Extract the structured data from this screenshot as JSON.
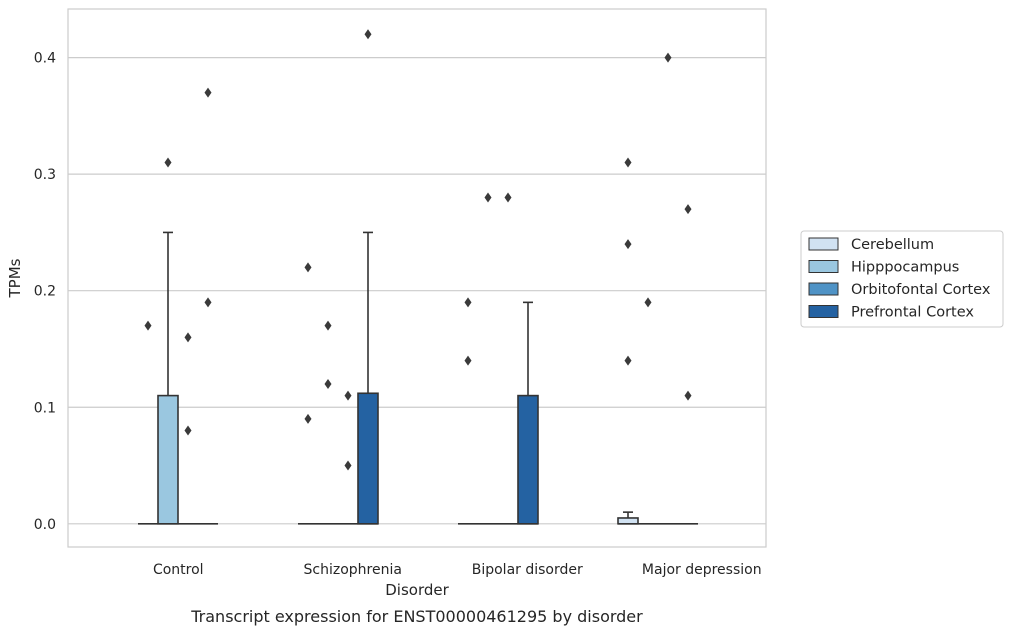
{
  "chart_data": {
    "type": "box",
    "title": "",
    "caption": "Transcript expression for ENST00000461295 by disorder",
    "xlabel": "Disorder",
    "ylabel": "TPMs",
    "ylim": [
      -0.02,
      0.44
    ],
    "yticks": [
      0.0,
      0.1,
      0.2,
      0.3,
      0.4
    ],
    "ytick_labels": [
      "0.0",
      "0.1",
      "0.2",
      "0.3",
      "0.4"
    ],
    "grid": "horizontal",
    "legend_position": "right",
    "categories": [
      "Control",
      "Schizophrenia",
      "Bipolar disorder",
      "Major depression"
    ],
    "series": [
      {
        "name": "Cerebellum",
        "color": "#d1e2f2",
        "boxes": [
          {
            "q1": 0,
            "median": 0,
            "q3": 0,
            "whisker_low": 0,
            "whisker_high": 0,
            "outliers": [
              0.17
            ]
          },
          {
            "q1": 0,
            "median": 0,
            "q3": 0,
            "whisker_low": 0,
            "whisker_high": 0,
            "outliers": [
              0.22,
              0.09
            ]
          },
          {
            "q1": 0,
            "median": 0,
            "q3": 0,
            "whisker_low": 0,
            "whisker_high": 0,
            "outliers": [
              0.19,
              0.14
            ]
          },
          {
            "q1": 0,
            "median": 0,
            "q3": 0.005,
            "whisker_low": 0,
            "whisker_high": 0.01,
            "outliers": [
              0.31,
              0.24,
              0.14
            ]
          }
        ]
      },
      {
        "name": "Hipppocampus",
        "color": "#9ac7e0",
        "boxes": [
          {
            "q1": 0,
            "median": 0,
            "q3": 0.11,
            "whisker_low": 0,
            "whisker_high": 0.25,
            "outliers": [
              0.31
            ]
          },
          {
            "q1": 0,
            "median": 0,
            "q3": 0,
            "whisker_low": 0,
            "whisker_high": 0,
            "outliers": [
              0.17,
              0.12
            ]
          },
          {
            "q1": 0,
            "median": 0,
            "q3": 0,
            "whisker_low": 0,
            "whisker_high": 0,
            "outliers": [
              0.28
            ]
          },
          {
            "q1": 0,
            "median": 0,
            "q3": 0,
            "whisker_low": 0,
            "whisker_high": 0,
            "outliers": [
              0.19
            ]
          }
        ]
      },
      {
        "name": "Orbitofontal Cortex",
        "color": "#4f93c6",
        "boxes": [
          {
            "q1": 0,
            "median": 0,
            "q3": 0,
            "whisker_low": 0,
            "whisker_high": 0,
            "outliers": [
              0.16,
              0.08
            ]
          },
          {
            "q1": 0,
            "median": 0,
            "q3": 0,
            "whisker_low": 0,
            "whisker_high": 0,
            "outliers": [
              0.11,
              0.05
            ]
          },
          {
            "q1": 0,
            "median": 0,
            "q3": 0,
            "whisker_low": 0,
            "whisker_high": 0,
            "outliers": [
              0.28
            ]
          },
          {
            "q1": 0,
            "median": 0,
            "q3": 0,
            "whisker_low": 0,
            "whisker_high": 0,
            "outliers": [
              0.4
            ]
          }
        ]
      },
      {
        "name": "Prefrontal Cortex",
        "color": "#2462a2",
        "boxes": [
          {
            "q1": 0,
            "median": 0,
            "q3": 0,
            "whisker_low": 0,
            "whisker_high": 0,
            "outliers": [
              0.37,
              0.19
            ]
          },
          {
            "q1": 0,
            "median": 0,
            "q3": 0.112,
            "whisker_low": 0,
            "whisker_high": 0.25,
            "outliers": [
              0.42
            ]
          },
          {
            "q1": 0,
            "median": 0,
            "q3": 0.11,
            "whisker_low": 0,
            "whisker_high": 0.19,
            "outliers": []
          },
          {
            "q1": 0,
            "median": 0,
            "q3": 0,
            "whisker_low": 0,
            "whisker_high": 0,
            "outliers": [
              0.27,
              0.11
            ]
          }
        ]
      }
    ]
  }
}
